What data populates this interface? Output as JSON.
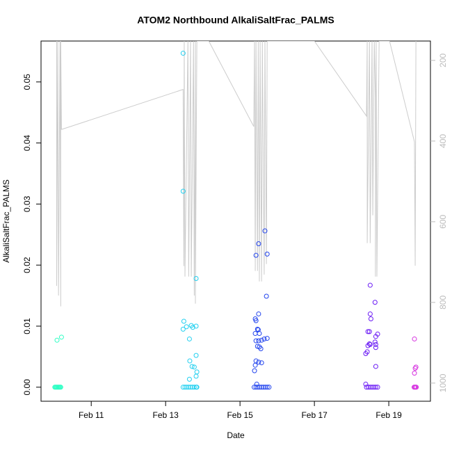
{
  "chart_data": {
    "type": "scatter",
    "title": "ATOM2 Northbound AlkaliSaltFrac_PALMS",
    "xlabel": "Date",
    "ylabel": "AlkaliSaltFrac_PALMS",
    "xlim": [
      9.65,
      20.12
    ],
    "xticks": [
      {
        "value": 11,
        "label": "Feb 11"
      },
      {
        "value": 13,
        "label": "Feb 13"
      },
      {
        "value": 15,
        "label": "Feb 15"
      },
      {
        "value": 17,
        "label": "Feb 17"
      },
      {
        "value": 19,
        "label": "Feb 19"
      }
    ],
    "ylim": [
      -0.0023,
      0.0567
    ],
    "yticks": [
      {
        "value": 0,
        "label": "0.00"
      },
      {
        "value": 0.01,
        "label": "0.01"
      },
      {
        "value": 0.02,
        "label": "0.02"
      },
      {
        "value": 0.03,
        "label": "0.03"
      },
      {
        "value": 0.04,
        "label": "0.04"
      },
      {
        "value": 0.05,
        "label": "0.05"
      }
    ],
    "y2lim": [
      1045,
      152
    ],
    "y2ticks": [
      200,
      400,
      600,
      800,
      1000
    ],
    "series": [
      {
        "type": "scatter",
        "color": "#2effc4",
        "x": [
          10.02,
          10.04,
          10.06,
          10.08,
          10.1,
          10.12,
          10.14,
          10.16,
          10.18,
          10.08,
          10.2
        ],
        "values": [
          0,
          0,
          0,
          0,
          0,
          0,
          0,
          0,
          0,
          0.0077,
          0.0082
        ]
      },
      {
        "type": "scatter",
        "color": "#22d0f0",
        "x": [
          13.47,
          13.52,
          13.57,
          13.62,
          13.67,
          13.72,
          13.77,
          13.82,
          13.84,
          13.47,
          13.47,
          13.82,
          13.49,
          13.47,
          13.56,
          13.69,
          13.73,
          13.82,
          13.64,
          13.82,
          13.65,
          13.71,
          13.77,
          13.84,
          13.64,
          13.82
        ],
        "values": [
          0,
          0,
          0,
          0,
          0,
          0,
          0,
          0,
          0,
          0.0547,
          0.0321,
          0.0178,
          0.0108,
          0.0095,
          0.0099,
          0.0101,
          0.0098,
          0.01,
          0.0079,
          0.0052,
          0.0043,
          0.0034,
          0.0033,
          0.0025,
          0.0013,
          0.0018
        ]
      },
      {
        "type": "scatter",
        "color": "#2244ee",
        "x": [
          15.38,
          15.43,
          15.48,
          15.53,
          15.58,
          15.63,
          15.68,
          15.73,
          15.78,
          15.67,
          15.5,
          15.43,
          15.73,
          15.71,
          15.5,
          15.41,
          15.43,
          15.47,
          15.49,
          15.41,
          15.52,
          15.43,
          15.5,
          15.58,
          15.65,
          15.73,
          15.47,
          15.52,
          15.56,
          15.43,
          15.5,
          15.58,
          15.41,
          15.39,
          15.45
        ],
        "values": [
          0,
          0,
          0,
          0,
          0,
          0,
          0,
          0,
          0,
          0.0256,
          0.0235,
          0.0216,
          0.0218,
          0.0149,
          0.012,
          0.0112,
          0.0109,
          0.0095,
          0.0094,
          0.0088,
          0.0088,
          0.0076,
          0.0076,
          0.0077,
          0.0079,
          0.008,
          0.0067,
          0.0066,
          0.0063,
          0.0043,
          0.0041,
          0.004,
          0.0036,
          0.0027,
          0.0005
        ]
      },
      {
        "type": "scatter",
        "color": "#6a1af5",
        "x": [
          18.4,
          18.45,
          18.5,
          18.55,
          18.6,
          18.65,
          18.7,
          18.5,
          18.63,
          18.5,
          18.52,
          18.44,
          18.48,
          18.65,
          18.7,
          18.48,
          18.44,
          18.5,
          18.63,
          18.65,
          18.65,
          18.42,
          18.38,
          18.65,
          18.38
        ],
        "values": [
          0,
          0,
          0,
          0,
          0,
          0,
          0,
          0.0167,
          0.0139,
          0.012,
          0.0112,
          0.0091,
          0.0091,
          0.0083,
          0.0087,
          0.0071,
          0.0068,
          0.007,
          0.0074,
          0.007,
          0.0065,
          0.0058,
          0.0055,
          0.0034,
          0.0005
        ]
      },
      {
        "type": "scatter",
        "color": "#d633e0",
        "x": [
          19.68,
          19.7,
          19.72,
          19.74,
          19.69,
          19.73,
          19.71,
          19.69
        ],
        "values": [
          0,
          0,
          0,
          0,
          0.0079,
          0.0033,
          0.0031,
          0.0023
        ]
      },
      {
        "type": "line",
        "axis": "y2",
        "color": "#cccccc",
        "x": [
          10.07,
          10.07,
          10.1,
          10.12,
          10.16,
          10.18,
          10.18,
          10.2,
          10.21,
          13.47,
          13.49,
          13.5,
          13.52,
          13.6,
          13.62,
          13.67,
          13.69,
          13.75,
          13.77,
          13.8,
          13.8,
          13.84,
          14.16,
          15.37,
          15.39,
          15.41,
          15.43,
          15.47,
          15.49,
          15.52,
          15.54,
          15.58,
          15.6,
          15.65,
          15.67,
          15.71,
          15.73,
          15.77,
          17.0,
          18.4,
          18.42,
          18.42,
          18.48,
          18.5,
          18.55,
          18.57,
          18.61,
          18.64,
          18.64,
          18.66,
          18.68,
          18.74,
          19.02,
          19.69,
          19.71,
          19.73
        ],
        "values": [
          152,
          759,
          152,
          783,
          152,
          810,
          152,
          371,
          371,
          272,
          710,
          152,
          736,
          152,
          736,
          152,
          736,
          152,
          783,
          152,
          803,
          152,
          152,
          364,
          152,
          722,
          152,
          722,
          152,
          748,
          152,
          748,
          152,
          731,
          152,
          705,
          152,
          152,
          152,
          338,
          152,
          653,
          152,
          653,
          152,
          584,
          152,
          291,
          736,
          152,
          736,
          152,
          152,
          402,
          709,
          152
        ]
      }
    ]
  }
}
